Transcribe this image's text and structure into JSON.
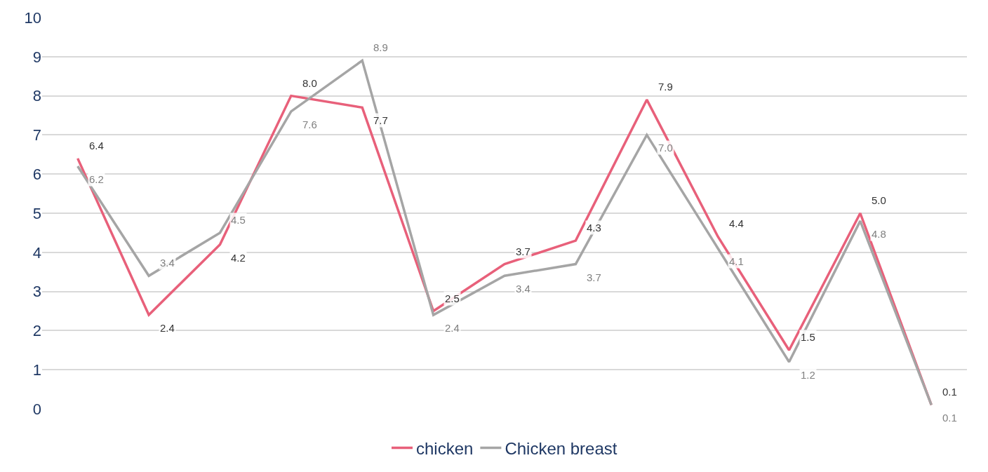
{
  "chart_data": {
    "type": "line",
    "categories": [
      null,
      null,
      null,
      null,
      null,
      null,
      null,
      null,
      null,
      null,
      null,
      null,
      null
    ],
    "series": [
      {
        "name": "chicken",
        "color": "#e8607a",
        "values": [
          6.4,
          2.4,
          4.2,
          8.0,
          7.7,
          2.5,
          3.7,
          4.3,
          7.9,
          4.4,
          1.5,
          5.0,
          0.1
        ],
        "value_labels": [
          "6.4",
          "2.4",
          "4.2",
          "8.0",
          "7.7",
          "2.5",
          "3.7",
          "4.3",
          "7.9",
          "4.4",
          "1.5",
          "5.0",
          "0.1"
        ]
      },
      {
        "name": "Chicken breast",
        "color": "#a5a5a5",
        "values": [
          6.2,
          3.4,
          4.5,
          7.6,
          8.9,
          2.4,
          3.4,
          3.7,
          7.0,
          4.1,
          1.2,
          4.8,
          0.1
        ],
        "value_labels": [
          "6.2",
          "3.4",
          "4.5",
          "7.6",
          "8.9",
          "2.4",
          "3.4",
          "3.7",
          "7.0",
          "4.1",
          "1.2",
          "4.8",
          "0.1"
        ]
      }
    ],
    "ylim": [
      0,
      10
    ],
    "yticks": [
      0,
      1,
      2,
      3,
      4,
      5,
      6,
      7,
      8,
      9,
      10
    ],
    "grid": "y",
    "legend": "bottom",
    "marker": "none",
    "line_style": "solid"
  }
}
